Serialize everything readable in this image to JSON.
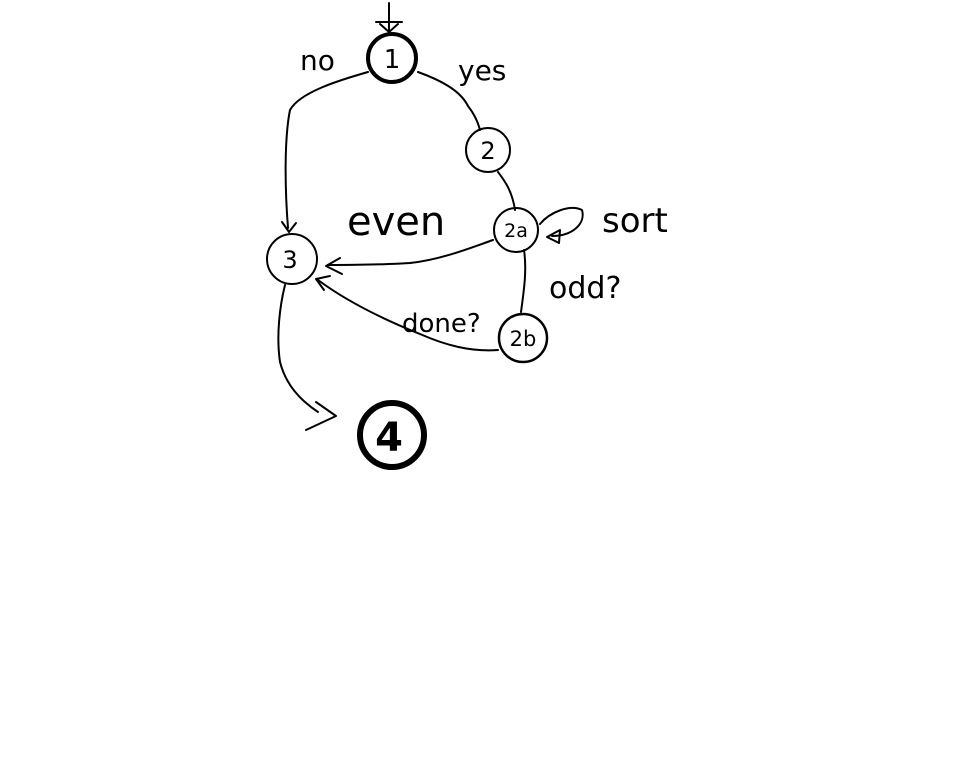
{
  "nodes": {
    "n1": "1",
    "n2": "2",
    "n2a": "2a",
    "n2b": "2b",
    "n3": "3",
    "n4": "4"
  },
  "edges": {
    "no": "no",
    "yes": "yes",
    "even": "even",
    "sort": "sort",
    "odd": "odd?",
    "done": "done?"
  }
}
